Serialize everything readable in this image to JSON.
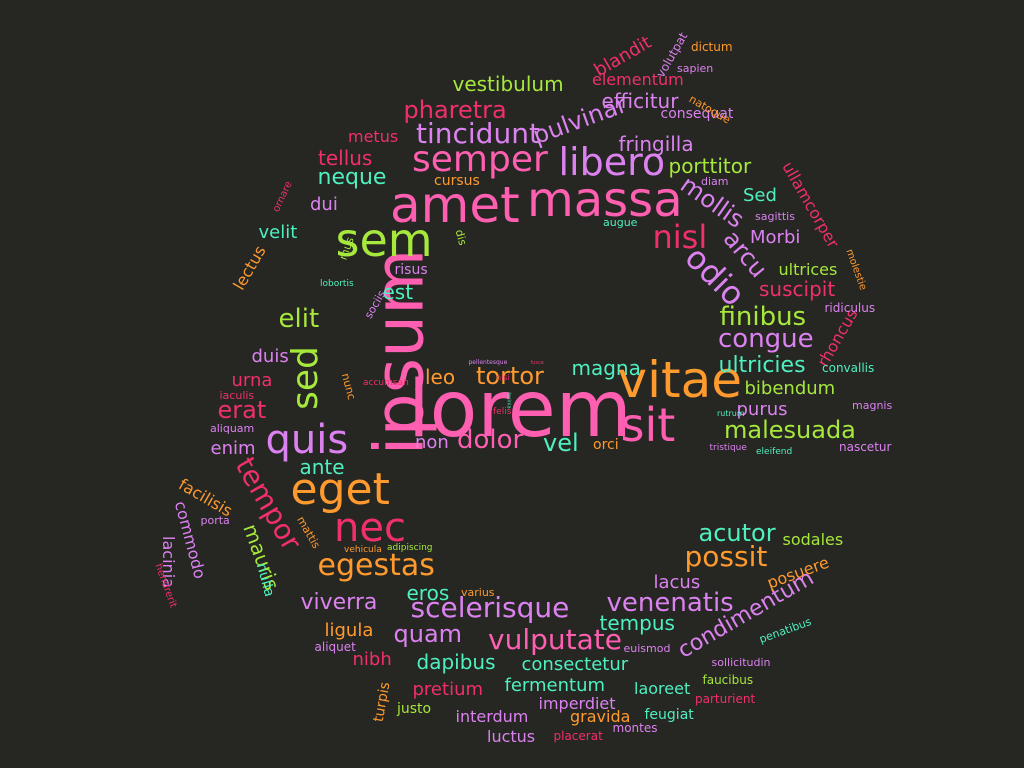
{
  "palette": {
    "background": "#262623",
    "pink": "#ff5fb0",
    "orange": "#ff9a2e",
    "green": "#a6e83c",
    "teal": "#4ef0c0",
    "violet": "#dc82f0",
    "crimson": "#f0306a"
  },
  "words": [
    {
      "text": "lorem",
      "color": "pink"
    },
    {
      "text": "ipsum",
      "color": "pink"
    },
    {
      "text": "amet",
      "color": "pink"
    },
    {
      "text": "massa",
      "color": "pink"
    },
    {
      "text": "vitae",
      "color": "orange"
    },
    {
      "text": "sit",
      "color": "pink"
    },
    {
      "text": "sem",
      "color": "green"
    },
    {
      "text": "semper",
      "color": "pink"
    },
    {
      "text": "libero",
      "color": "violet"
    },
    {
      "text": "eget",
      "color": "orange"
    },
    {
      "text": "quis",
      "color": "violet"
    },
    {
      "text": "nec",
      "color": "crimson"
    },
    {
      "text": "sed",
      "color": "green"
    },
    {
      "text": "tempor",
      "color": "crimson"
    },
    {
      "text": "scelerisque",
      "color": "violet"
    },
    {
      "text": "egestas",
      "color": "orange"
    },
    {
      "text": "venenatis",
      "color": "violet"
    },
    {
      "text": "vulputate",
      "color": "pink"
    },
    {
      "text": "tincidunt",
      "color": "violet"
    },
    {
      "text": "odio",
      "color": "violet"
    },
    {
      "text": "nisl",
      "color": "crimson"
    },
    {
      "text": "dolor",
      "color": "pink"
    },
    {
      "text": "tortor",
      "color": "orange"
    },
    {
      "text": "malesuada",
      "color": "green"
    },
    {
      "text": "finibus",
      "color": "green"
    },
    {
      "text": "congue",
      "color": "violet"
    },
    {
      "text": "possit",
      "color": "orange"
    },
    {
      "text": "acutor",
      "color": "teal"
    },
    {
      "text": "quam",
      "color": "violet"
    },
    {
      "text": "pharetra",
      "color": "crimson"
    },
    {
      "text": "pulvinar",
      "color": "violet"
    },
    {
      "text": "mollis",
      "color": "violet"
    },
    {
      "text": "arcu",
      "color": "violet"
    },
    {
      "text": "vestibulum",
      "color": "green"
    },
    {
      "text": "efficitur",
      "color": "violet"
    },
    {
      "text": "neque",
      "color": "teal"
    },
    {
      "text": "elit",
      "color": "green"
    },
    {
      "text": "erat",
      "color": "crimson"
    },
    {
      "text": "vel",
      "color": "teal"
    },
    {
      "text": "magna",
      "color": "teal"
    },
    {
      "text": "ultricies",
      "color": "teal"
    },
    {
      "text": "viverra",
      "color": "violet"
    },
    {
      "text": "condimentum",
      "color": "violet"
    },
    {
      "text": "tempus",
      "color": "teal"
    },
    {
      "text": "dapibus",
      "color": "teal"
    },
    {
      "text": "eros",
      "color": "teal"
    },
    {
      "text": "mauris",
      "color": "green"
    },
    {
      "text": "ante",
      "color": "teal"
    },
    {
      "text": "est",
      "color": "teal"
    },
    {
      "text": "tellus",
      "color": "crimson"
    },
    {
      "text": "fringilla",
      "color": "violet"
    },
    {
      "text": "porttitor",
      "color": "green"
    },
    {
      "text": "suscipit",
      "color": "crimson"
    },
    {
      "text": "bibendum",
      "color": "green"
    },
    {
      "text": "purus",
      "color": "violet"
    },
    {
      "text": "leo",
      "color": "orange"
    },
    {
      "text": "non",
      "color": "violet"
    },
    {
      "text": "duis",
      "color": "violet"
    },
    {
      "text": "urna",
      "color": "crimson"
    },
    {
      "text": "enim",
      "color": "violet"
    },
    {
      "text": "dui",
      "color": "violet"
    },
    {
      "text": "velit",
      "color": "teal"
    },
    {
      "text": "Morbi",
      "color": "violet"
    },
    {
      "text": "Sed",
      "color": "teal"
    },
    {
      "text": "ultrices",
      "color": "green"
    },
    {
      "text": "ligula",
      "color": "orange"
    },
    {
      "text": "nibh",
      "color": "crimson"
    },
    {
      "text": "pretium",
      "color": "crimson"
    },
    {
      "text": "consectetur",
      "color": "teal"
    },
    {
      "text": "fermentum",
      "color": "teal"
    },
    {
      "text": "laoreet",
      "color": "teal"
    },
    {
      "text": "interdum",
      "color": "violet"
    },
    {
      "text": "luctus",
      "color": "violet"
    },
    {
      "text": "gravida",
      "color": "orange"
    },
    {
      "text": "imperdiet",
      "color": "violet"
    },
    {
      "text": "feugiat",
      "color": "teal"
    },
    {
      "text": "posuere",
      "color": "orange"
    },
    {
      "text": "sodales",
      "color": "green"
    },
    {
      "text": "lacus",
      "color": "violet"
    },
    {
      "text": "rhoncus",
      "color": "crimson"
    },
    {
      "text": "ullamcorper",
      "color": "crimson"
    },
    {
      "text": "blandit",
      "color": "crimson"
    },
    {
      "text": "elementum",
      "color": "crimson"
    },
    {
      "text": "consequat",
      "color": "violet"
    },
    {
      "text": "facilisis",
      "color": "orange"
    },
    {
      "text": "commodo",
      "color": "violet"
    },
    {
      "text": "lacinia",
      "color": "violet"
    },
    {
      "text": "lectus",
      "color": "orange"
    },
    {
      "text": "nulla",
      "color": "teal"
    },
    {
      "text": "metus",
      "color": "crimson"
    },
    {
      "text": "cursus",
      "color": "orange"
    },
    {
      "text": "turpis",
      "color": "orange"
    },
    {
      "text": "justo",
      "color": "green"
    },
    {
      "text": "orci",
      "color": "orange"
    },
    {
      "text": "risus",
      "color": "violet"
    },
    {
      "text": "dictum",
      "color": "orange"
    },
    {
      "text": "sapien",
      "color": "violet"
    },
    {
      "text": "volutpat",
      "color": "violet"
    },
    {
      "text": "natoque",
      "color": "orange"
    },
    {
      "text": "diam",
      "color": "violet"
    },
    {
      "text": "sagittis",
      "color": "violet"
    },
    {
      "text": "augue",
      "color": "teal"
    },
    {
      "text": "molestie",
      "color": "orange"
    },
    {
      "text": "ridiculus",
      "color": "violet"
    },
    {
      "text": "convallis",
      "color": "teal"
    },
    {
      "text": "magnis",
      "color": "violet"
    },
    {
      "text": "rutrum",
      "color": "teal"
    },
    {
      "text": "tristique",
      "color": "violet"
    },
    {
      "text": "eleifend",
      "color": "teal"
    },
    {
      "text": "nascetur",
      "color": "violet"
    },
    {
      "text": "penatibus",
      "color": "teal"
    },
    {
      "text": "sollicitudin",
      "color": "violet"
    },
    {
      "text": "faucibus",
      "color": "green"
    },
    {
      "text": "parturient",
      "color": "crimson"
    },
    {
      "text": "euismod",
      "color": "violet"
    },
    {
      "text": "placerat",
      "color": "crimson"
    },
    {
      "text": "montes",
      "color": "violet"
    },
    {
      "text": "varius",
      "color": "orange"
    },
    {
      "text": "aliquet",
      "color": "violet"
    },
    {
      "text": "porta",
      "color": "violet"
    },
    {
      "text": "mattis",
      "color": "orange"
    },
    {
      "text": "vehicula",
      "color": "orange"
    },
    {
      "text": "adipiscing",
      "color": "green"
    },
    {
      "text": "hendrerit",
      "color": "crimson"
    },
    {
      "text": "iaculis",
      "color": "crimson"
    },
    {
      "text": "aliquam",
      "color": "violet"
    },
    {
      "text": "nunc",
      "color": "orange"
    },
    {
      "text": "accumsan",
      "color": "crimson"
    },
    {
      "text": "nisi",
      "color": "crimson"
    },
    {
      "text": "felis",
      "color": "crimson"
    },
    {
      "text": "ornare",
      "color": "crimson"
    },
    {
      "text": "mus",
      "color": "green"
    },
    {
      "text": "dis",
      "color": "green"
    },
    {
      "text": "lobortis",
      "color": "teal"
    },
    {
      "text": "sociis",
      "color": "violet"
    },
    {
      "text": "pellentesque",
      "color": "violet"
    },
    {
      "text": "fusce",
      "color": "crimson"
    },
    {
      "text": "lacinia",
      "color": "teal"
    }
  ]
}
